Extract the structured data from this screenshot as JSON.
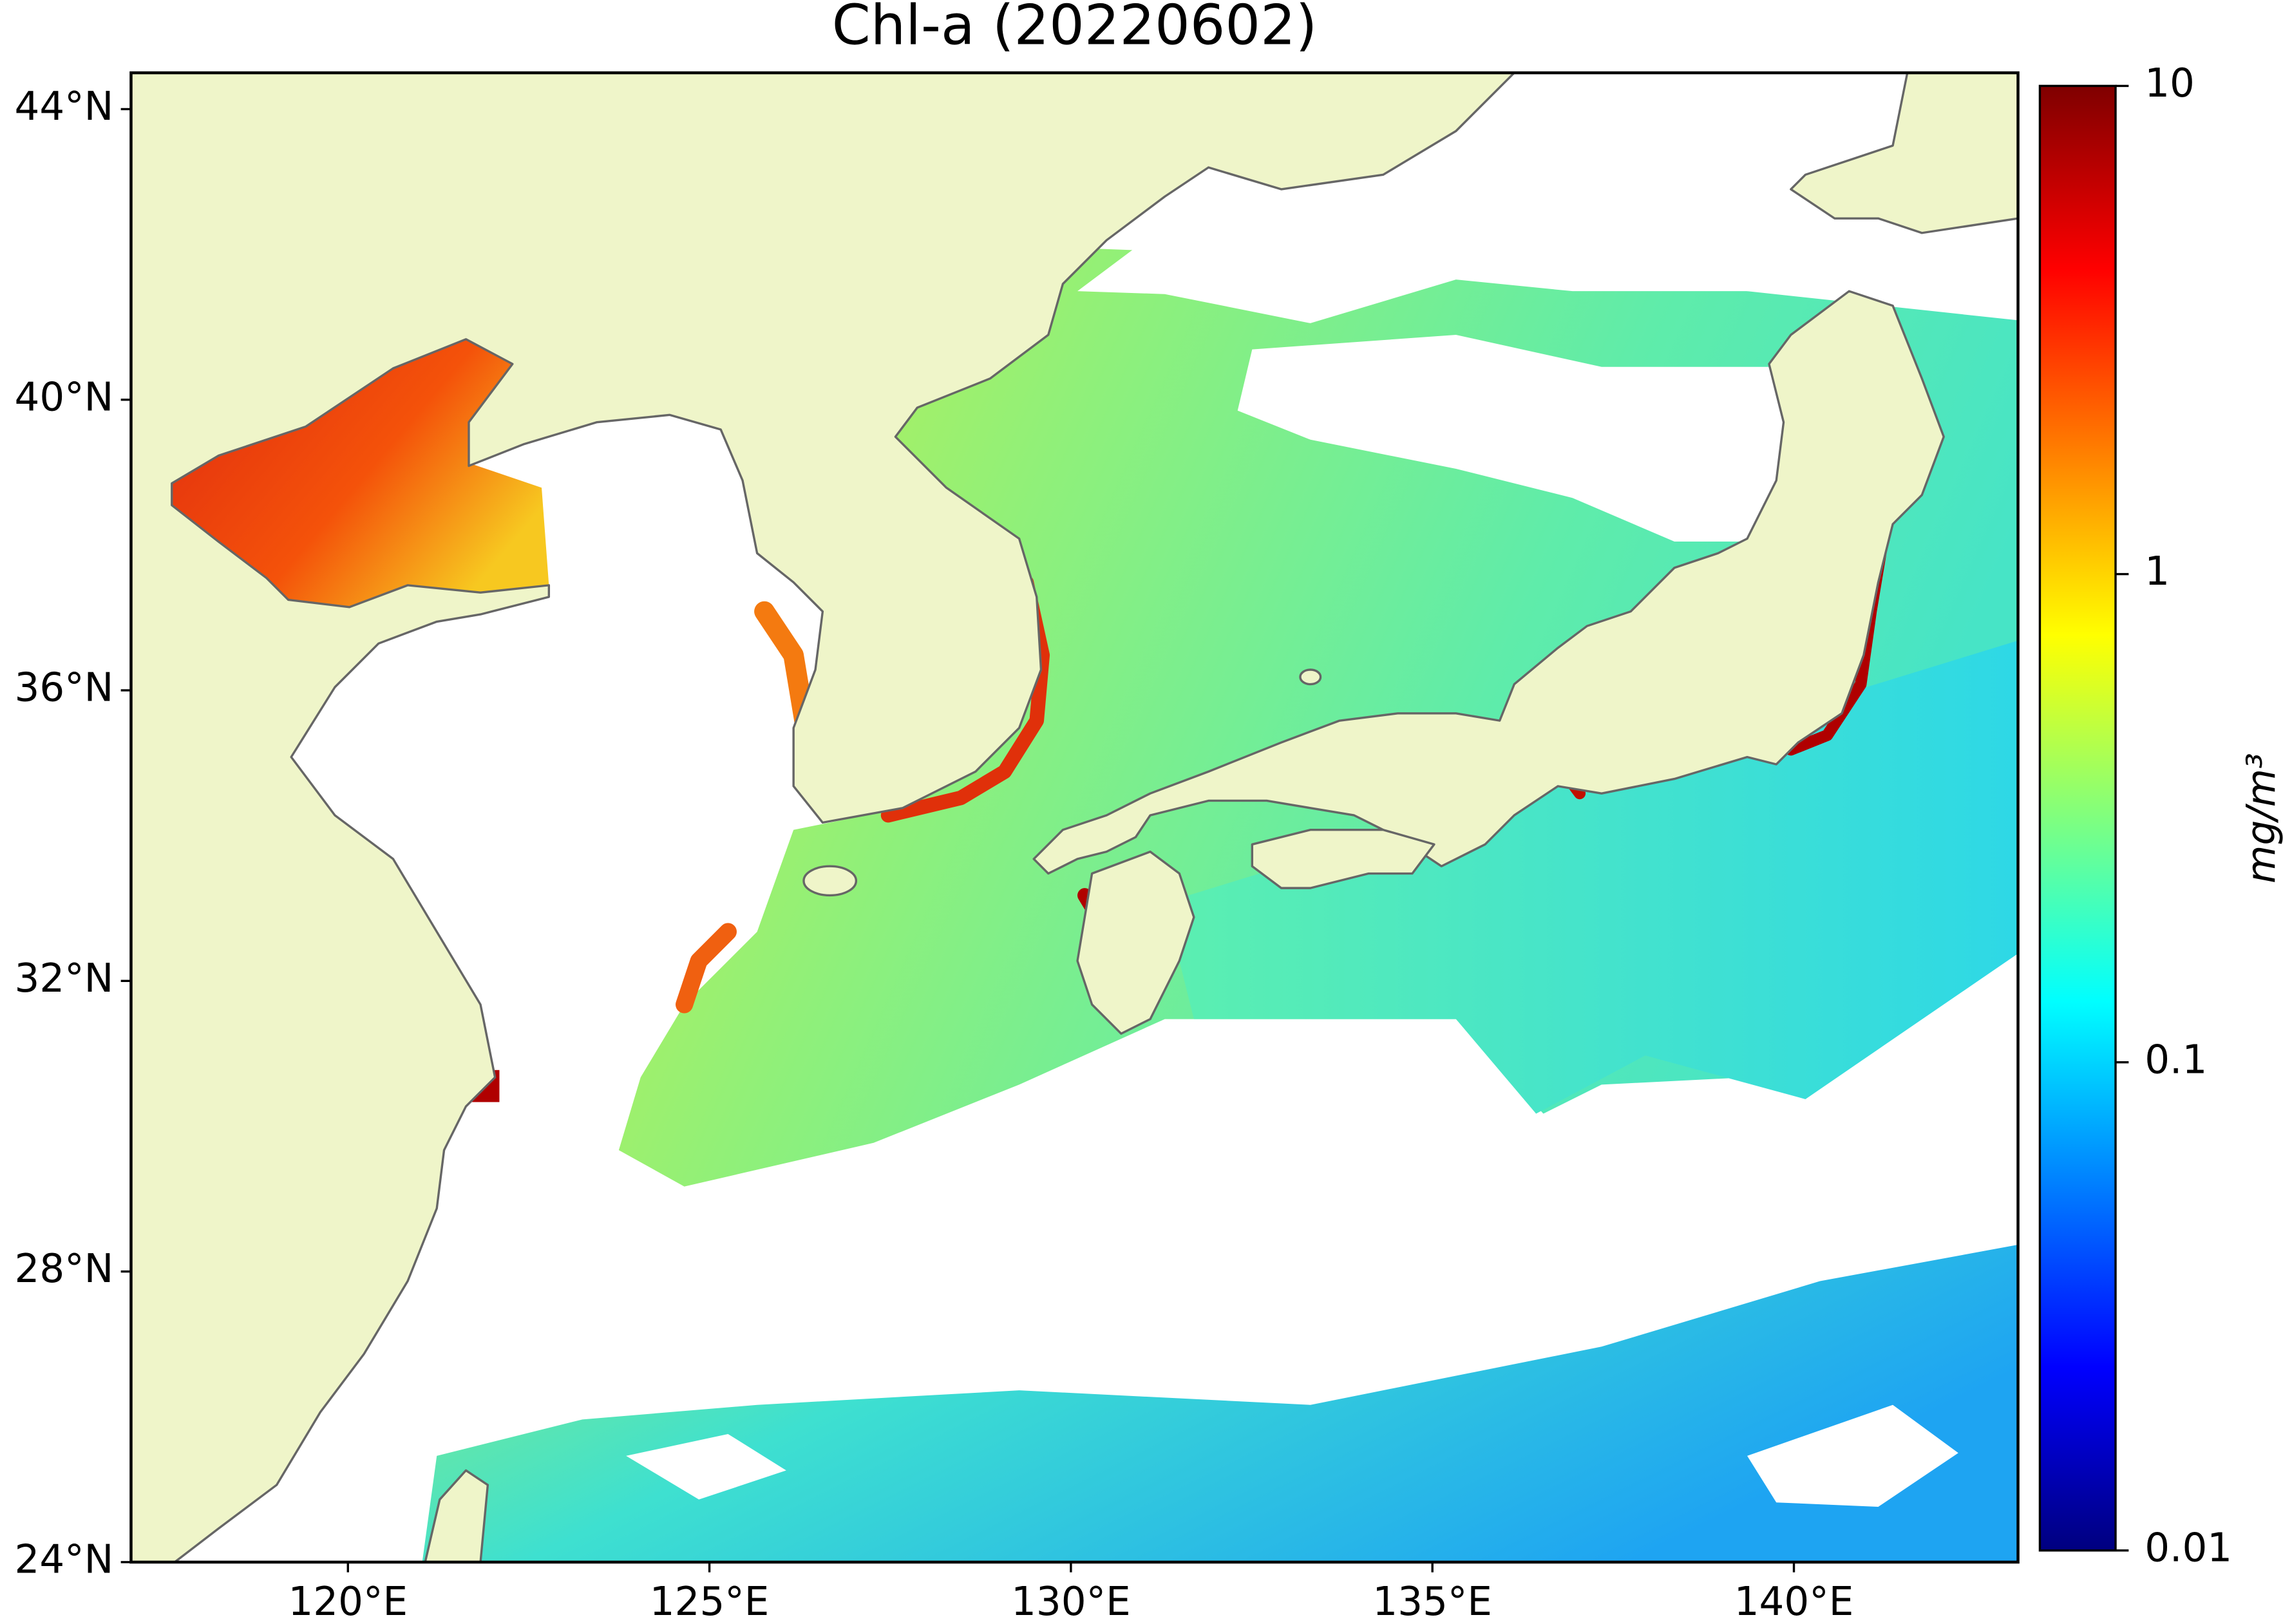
{
  "chart_data": {
    "type": "map",
    "title": "Chl-a (20220602)",
    "xlim": [
      117,
      143.1
    ],
    "ylim": [
      24,
      44.5
    ],
    "xticks": [
      {
        "value": 120,
        "label": "120°E"
      },
      {
        "value": 125,
        "label": "125°E"
      },
      {
        "value": 130,
        "label": "130°E"
      },
      {
        "value": 135,
        "label": "135°E"
      },
      {
        "value": 140,
        "label": "140°E"
      }
    ],
    "yticks": [
      {
        "value": 24,
        "label": "24°N"
      },
      {
        "value": 28,
        "label": "28°N"
      },
      {
        "value": 32,
        "label": "32°N"
      },
      {
        "value": 36,
        "label": "36°N"
      },
      {
        "value": 40,
        "label": "40°N"
      },
      {
        "value": 44,
        "label": "44°N"
      }
    ],
    "colorbar": {
      "label": "mg/m³",
      "clim": [
        0.01,
        10
      ],
      "ticks": [
        0.01,
        0.1,
        1,
        10
      ],
      "scale": "log",
      "colormap": "jet"
    }
  }
}
